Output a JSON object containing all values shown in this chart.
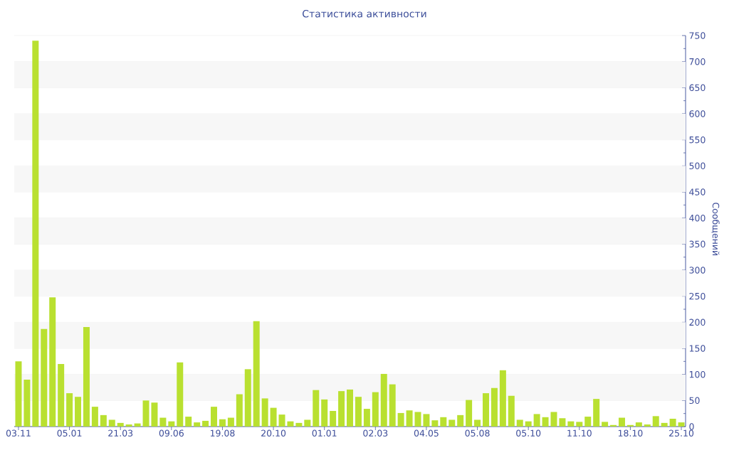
{
  "chart_data": {
    "type": "bar",
    "title": "Статистика активности",
    "ylabel": "Сообщений",
    "categories": [
      "03.11",
      null,
      null,
      null,
      null,
      null,
      "05.01",
      null,
      null,
      null,
      null,
      null,
      "21.03",
      null,
      null,
      null,
      null,
      null,
      "09.06",
      null,
      null,
      null,
      null,
      null,
      "19.08",
      null,
      null,
      null,
      null,
      null,
      "20.10",
      null,
      null,
      null,
      null,
      null,
      "01.01",
      null,
      null,
      null,
      null,
      null,
      "02.03",
      null,
      null,
      null,
      null,
      null,
      "04.05",
      null,
      null,
      null,
      null,
      null,
      "05.08",
      null,
      null,
      null,
      null,
      null,
      "05.10",
      null,
      null,
      null,
      null,
      null,
      "11.10",
      null,
      null,
      null,
      null,
      null,
      "18.10",
      null,
      null,
      null,
      null,
      null,
      "25.10"
    ],
    "values": [
      125,
      90,
      740,
      187,
      248,
      120,
      64,
      57,
      191,
      38,
      22,
      13,
      7,
      4,
      6,
      50,
      46,
      17,
      10,
      123,
      19,
      8,
      11,
      38,
      14,
      17,
      62,
      110,
      202,
      54,
      36,
      23,
      10,
      7,
      13,
      70,
      52,
      30,
      68,
      71,
      57,
      34,
      66,
      101,
      81,
      26,
      31,
      28,
      24,
      12,
      18,
      13,
      22,
      51,
      13,
      64,
      74,
      108,
      59,
      13,
      10,
      24,
      18,
      28,
      16,
      10,
      9,
      19,
      53,
      9,
      3,
      17,
      3,
      8,
      4,
      20,
      7,
      15,
      8
    ],
    "color": "#b9e030",
    "ylim": [
      0,
      750
    ],
    "yticks": [
      0,
      50,
      100,
      150,
      200,
      250,
      300,
      350,
      400,
      450,
      500,
      550,
      600,
      650,
      700,
      750
    ],
    "grid": "y"
  }
}
